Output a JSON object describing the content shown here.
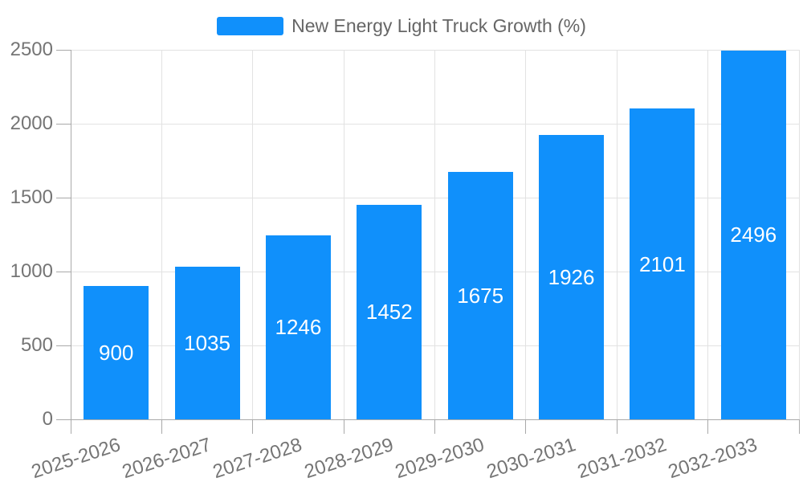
{
  "legend": {
    "label": "New Energy Light Truck Growth (%)"
  },
  "chart_data": {
    "type": "bar",
    "title": "",
    "categories": [
      "2025-2026",
      "2026-2027",
      "2027-2028",
      "2028-2029",
      "2029-2030",
      "2030-2031",
      "2031-2032",
      "2032-2033"
    ],
    "series": [
      {
        "name": "New Energy Light Truck Growth (%)",
        "values": [
          900,
          1035,
          1246,
          1452,
          1675,
          1926,
          2101,
          2496
        ]
      }
    ],
    "value_labels": [
      900,
      1035,
      1246,
      1452,
      1675,
      1926,
      2101,
      2496
    ],
    "xlabel": "",
    "ylabel": "",
    "ylim": [
      0,
      2500
    ],
    "yticks": [
      0,
      500,
      1000,
      1500,
      2000,
      2500
    ],
    "grid": true,
    "legend_position": "top-center",
    "value_label_position": "inside-center",
    "colors": {
      "bar": "#1090FB",
      "grid": "#E2E2E2",
      "axis": "#A9A9A9",
      "axis_label": "#757575",
      "legend_text": "#666666",
      "value_label": "#FFFFFF",
      "background": "#FFFFFF"
    }
  }
}
